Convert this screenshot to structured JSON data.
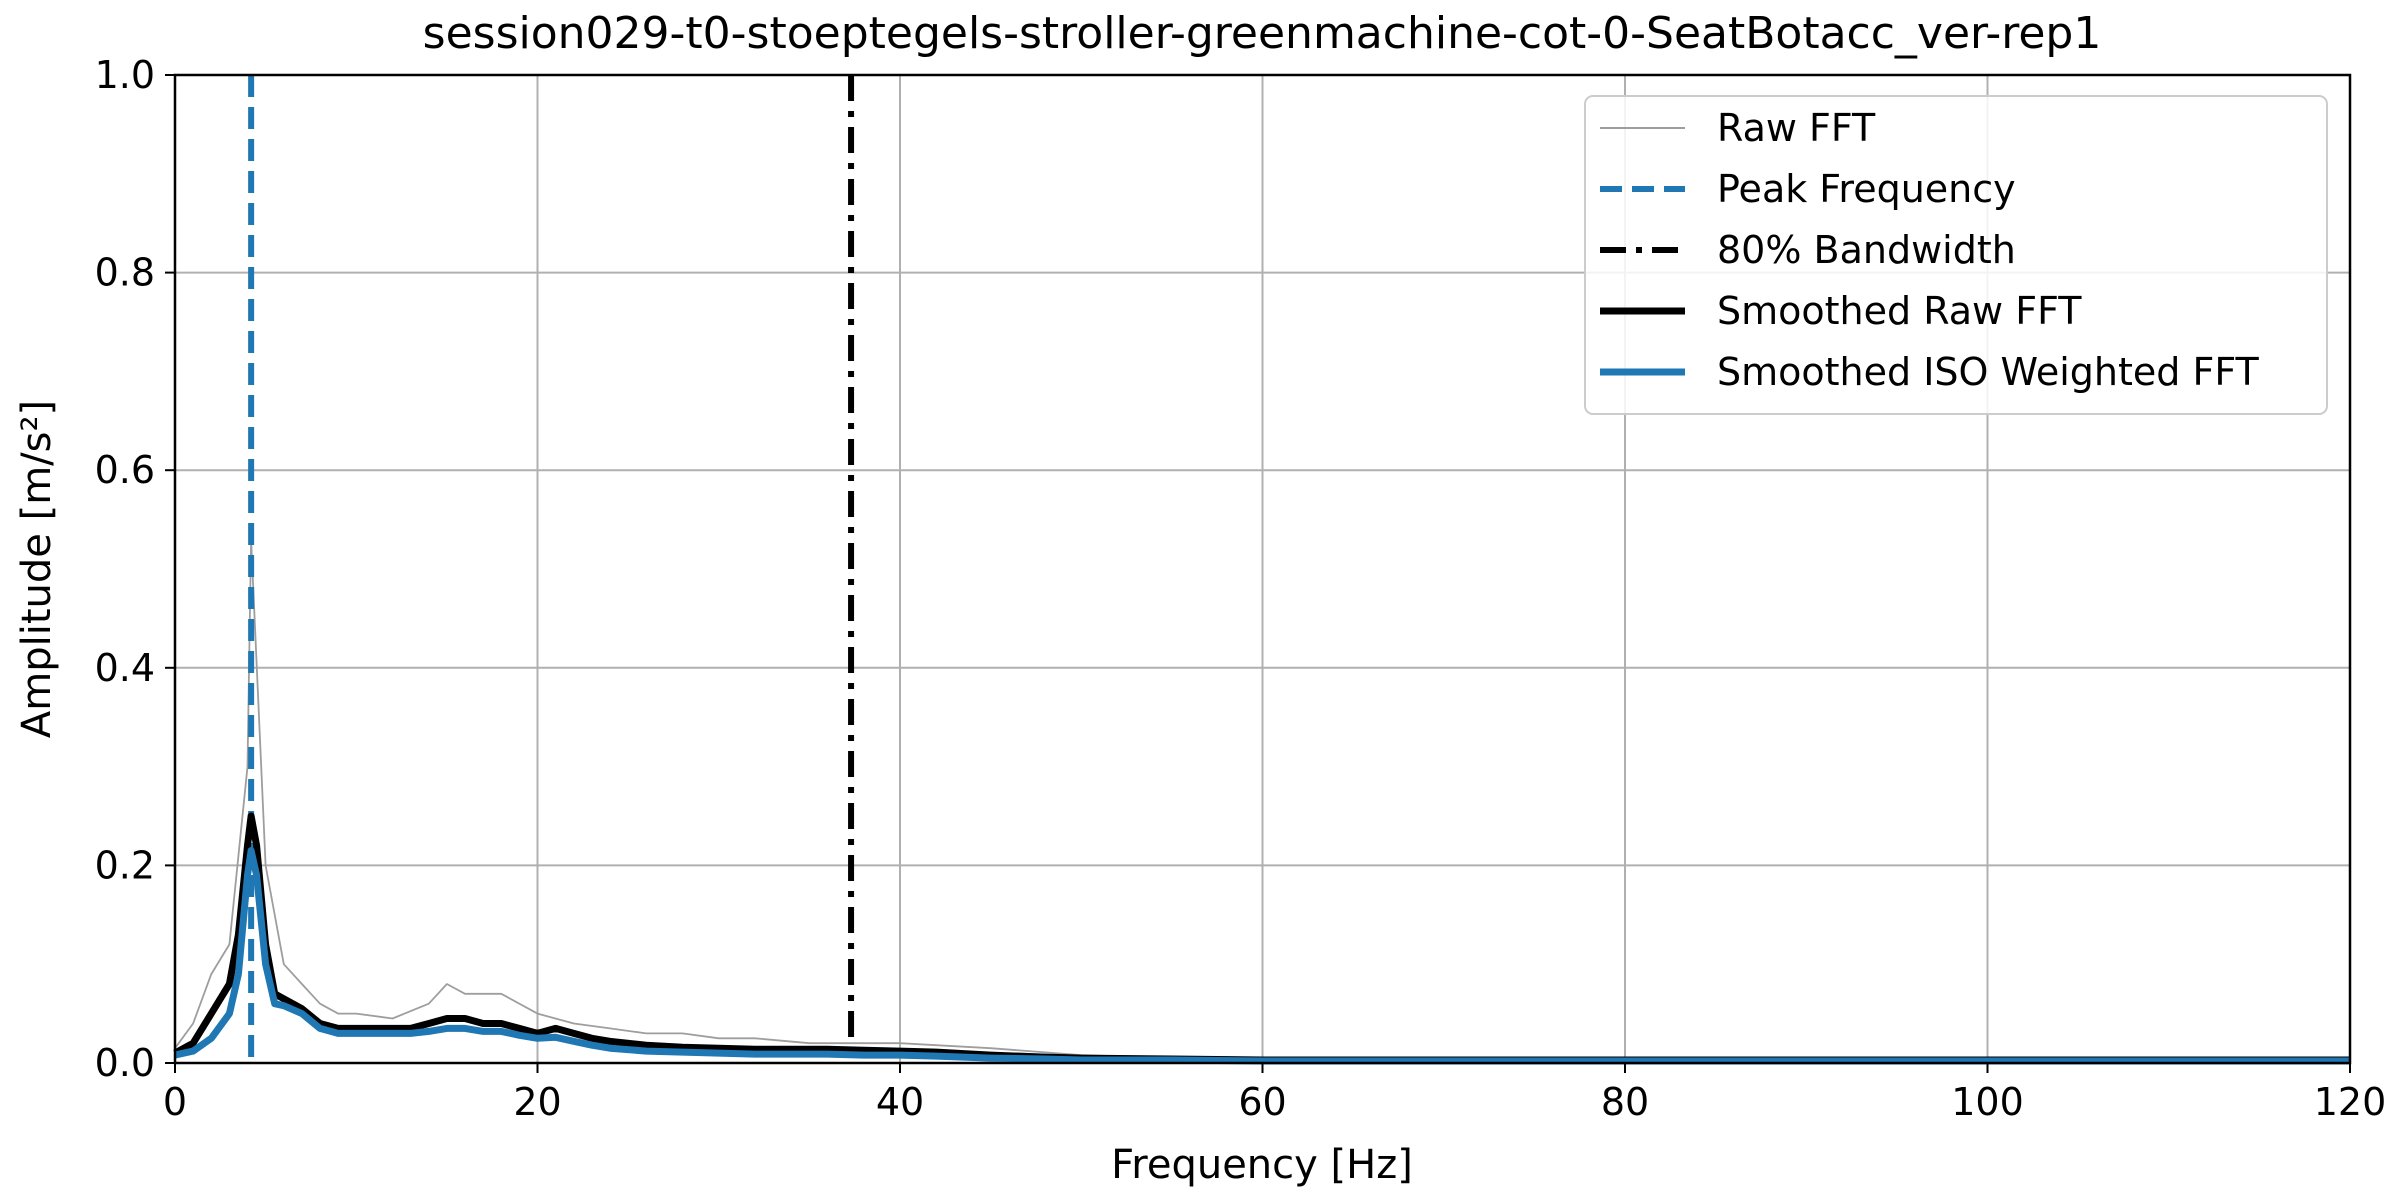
{
  "chart_data": {
    "type": "line",
    "title": "session029-t0-stoeptegels-stroller-greenmachine-cot-0-SeatBotacc_ver-rep1",
    "xlabel": "Frequency [Hz]",
    "ylabel": "Amplitude [m/s²]",
    "xlim": [
      0,
      120
    ],
    "ylim": [
      0,
      1.0
    ],
    "xticks": [
      "0",
      "20",
      "40",
      "60",
      "80",
      "100",
      "120"
    ],
    "yticks": [
      "0.0",
      "0.2",
      "0.4",
      "0.6",
      "0.8",
      "1.0"
    ],
    "grid": true,
    "legend_position": "top-right",
    "peak_frequency": 4.2,
    "bandwidth_80": 37.3,
    "series": [
      {
        "name": "Raw FFT",
        "style": "thin gray line",
        "color": "#9e9e9e",
        "x": [
          0,
          1,
          2,
          3,
          4,
          4.2,
          5,
          6,
          7,
          8,
          9,
          10,
          12,
          14,
          15,
          16,
          18,
          20,
          22,
          24,
          26,
          28,
          30,
          32,
          35,
          38,
          40,
          45,
          50,
          55,
          60,
          70,
          80,
          90,
          100,
          110,
          120
        ],
        "y": [
          0.015,
          0.04,
          0.09,
          0.12,
          0.3,
          0.53,
          0.2,
          0.1,
          0.08,
          0.06,
          0.05,
          0.05,
          0.045,
          0.06,
          0.08,
          0.07,
          0.07,
          0.05,
          0.04,
          0.035,
          0.03,
          0.03,
          0.025,
          0.025,
          0.02,
          0.02,
          0.02,
          0.015,
          0.008,
          0.005,
          0.004,
          0.003,
          0.003,
          0.003,
          0.003,
          0.003,
          0.003
        ]
      },
      {
        "name": "Peak Frequency",
        "style": "dashed vertical",
        "color": "#1f77b4",
        "x": [
          4.2,
          4.2
        ],
        "y": [
          0,
          1.0
        ]
      },
      {
        "name": "80% Bandwidth",
        "style": "dash-dot vertical",
        "color": "#000000",
        "x": [
          37.3,
          37.3
        ],
        "y": [
          0,
          1.0
        ]
      },
      {
        "name": "Smoothed Raw FFT",
        "style": "thick black line",
        "color": "#000000",
        "x": [
          0,
          1,
          2,
          3,
          3.5,
          4,
          4.2,
          4.5,
          5,
          5.5,
          6,
          7,
          8,
          9,
          10,
          11,
          12,
          13,
          14,
          15,
          16,
          17,
          18,
          19,
          20,
          21,
          22,
          23,
          24,
          26,
          28,
          30,
          32,
          34,
          36,
          38,
          40,
          42,
          45,
          48,
          50,
          55,
          60,
          70,
          80,
          90,
          100,
          110,
          120
        ],
        "y": [
          0.01,
          0.02,
          0.05,
          0.08,
          0.13,
          0.22,
          0.25,
          0.22,
          0.12,
          0.07,
          0.065,
          0.055,
          0.04,
          0.035,
          0.035,
          0.035,
          0.035,
          0.035,
          0.04,
          0.045,
          0.045,
          0.04,
          0.04,
          0.035,
          0.03,
          0.035,
          0.03,
          0.025,
          0.022,
          0.018,
          0.016,
          0.015,
          0.014,
          0.014,
          0.014,
          0.013,
          0.012,
          0.011,
          0.008,
          0.006,
          0.005,
          0.004,
          0.003,
          0.003,
          0.003,
          0.003,
          0.003,
          0.003,
          0.003
        ]
      },
      {
        "name": "Smoothed ISO Weighted FFT",
        "style": "thick blue line",
        "color": "#1f77b4",
        "x": [
          0,
          1,
          2,
          3,
          3.5,
          4,
          4.2,
          4.5,
          5,
          5.5,
          6,
          7,
          8,
          9,
          10,
          11,
          12,
          13,
          14,
          15,
          16,
          17,
          18,
          19,
          20,
          21,
          22,
          23,
          24,
          26,
          28,
          30,
          32,
          34,
          36,
          38,
          40,
          42,
          45,
          48,
          50,
          55,
          60,
          70,
          80,
          90,
          100,
          110,
          120
        ],
        "y": [
          0.008,
          0.012,
          0.025,
          0.05,
          0.09,
          0.19,
          0.215,
          0.19,
          0.1,
          0.06,
          0.058,
          0.05,
          0.035,
          0.03,
          0.03,
          0.03,
          0.03,
          0.03,
          0.032,
          0.035,
          0.035,
          0.032,
          0.032,
          0.028,
          0.025,
          0.026,
          0.022,
          0.018,
          0.015,
          0.012,
          0.011,
          0.01,
          0.009,
          0.009,
          0.009,
          0.008,
          0.008,
          0.007,
          0.005,
          0.004,
          0.003,
          0.003,
          0.002,
          0.002,
          0.002,
          0.002,
          0.002,
          0.002,
          0.002
        ]
      }
    ]
  }
}
